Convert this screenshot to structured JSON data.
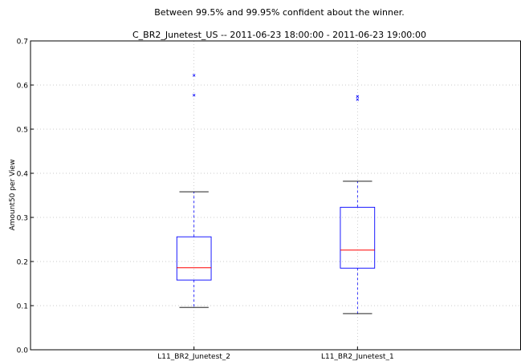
{
  "chart_data": {
    "type": "box",
    "title": "Between 99.5% and 99.95% confident about the winner.",
    "subtitle": "C_BR2_Junetest_US -- 2011-06-23 18:00:00 - 2011-06-23 19:00:00",
    "xlabel": "",
    "ylabel": "Amount50 per View",
    "ylim": [
      0,
      0.7
    ],
    "yticks": [
      0.0,
      0.1,
      0.2,
      0.3,
      0.4,
      0.5,
      0.6,
      0.7
    ],
    "ytick_labels": [
      "0.0",
      "0.1",
      "0.2",
      "0.3",
      "0.4",
      "0.5",
      "0.6",
      "0.7"
    ],
    "grid": true,
    "categories": [
      "L11_BR2_Junetest_2",
      "L11_BR2_Junetest_1"
    ],
    "boxes": [
      {
        "whisker_low": 0.096,
        "q1": 0.158,
        "median": 0.186,
        "q3": 0.256,
        "whisker_high": 0.358,
        "outliers": [
          0.577,
          0.622
        ]
      },
      {
        "whisker_low": 0.082,
        "q1": 0.185,
        "median": 0.226,
        "q3": 0.323,
        "whisker_high": 0.382,
        "outliers": [
          0.567,
          0.574
        ]
      }
    ]
  },
  "colors": {
    "box": "#0000ff",
    "median": "#ff0000",
    "whisker": "#0000ff",
    "cap": "#000000",
    "outlier": "#0000ff",
    "grid": "#bbbbbb",
    "axis": "#000000"
  }
}
